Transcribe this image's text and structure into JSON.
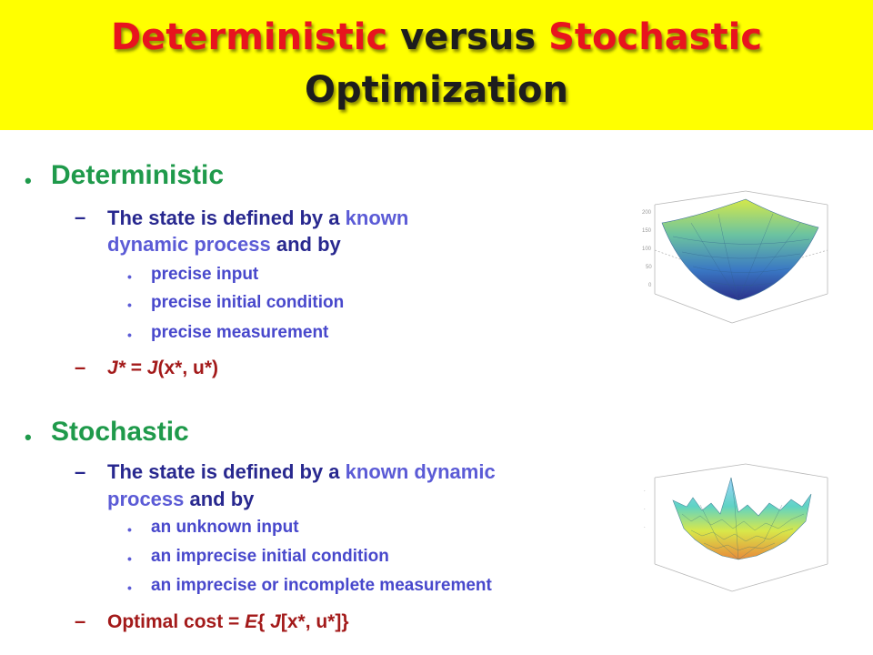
{
  "title": {
    "line1_part1": "Deterministic",
    "line1_part2": "versus",
    "line1_part3": "Stochastic",
    "line2": "Optimization"
  },
  "deterministic": {
    "heading": "Deterministic",
    "state_line1_a": "The state is defined by a ",
    "state_line1_b": "known",
    "state_line2_a": "dynamic process",
    "state_line2_b": " and by",
    "sub_items": [
      "precise input",
      "precise  initial condition",
      "precise measurement"
    ],
    "cost_a": "J*",
    "cost_b": " = ",
    "cost_c": "J",
    "cost_d": "(x*, u*)"
  },
  "stochastic": {
    "heading": "Stochastic",
    "state_line1_a": "The state is defined by a ",
    "state_line1_b": "known dynamic",
    "state_line2_a": "process",
    "state_line2_b": " and by",
    "sub_items": [
      "an unknown input",
      "an imprecise initial condition",
      "an imprecise or incomplete measurement"
    ],
    "cost_a": "Optimal cost = ",
    "cost_b": "E",
    "cost_c": "{ ",
    "cost_d": "J",
    "cost_e": "[x*, u*]}"
  },
  "colors": {
    "banner": "#ffff00",
    "title_red": "#e8141e",
    "heading_green": "#1f9a4b",
    "text_navy": "#28288f",
    "text_blue": "#5b5bd6",
    "cost_maroon": "#a31a1a"
  }
}
